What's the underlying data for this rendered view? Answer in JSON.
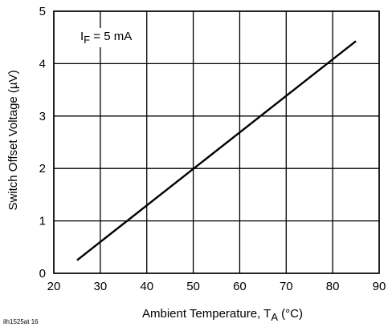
{
  "chart_data": {
    "type": "line",
    "title": "",
    "xlabel": "Ambient Temperature, T",
    "xlabel_sub": "A",
    "xlabel_unit": " (°C)",
    "ylabel": "Switch Offset Voltage (µV)",
    "xlim": [
      20,
      90
    ],
    "ylim": [
      0,
      5
    ],
    "x_ticks": [
      20,
      30,
      40,
      50,
      60,
      70,
      80,
      90
    ],
    "y_ticks": [
      0,
      1,
      2,
      3,
      4,
      5
    ],
    "grid": true,
    "annotation": {
      "prefix": "I",
      "sub": "F",
      "suffix": " = 5 mA",
      "placement": "top-left"
    },
    "series": [
      {
        "x": [
          25,
          85
        ],
        "y": [
          0.25,
          4.43
        ]
      }
    ]
  },
  "figure_id": "ilh1525at 16"
}
